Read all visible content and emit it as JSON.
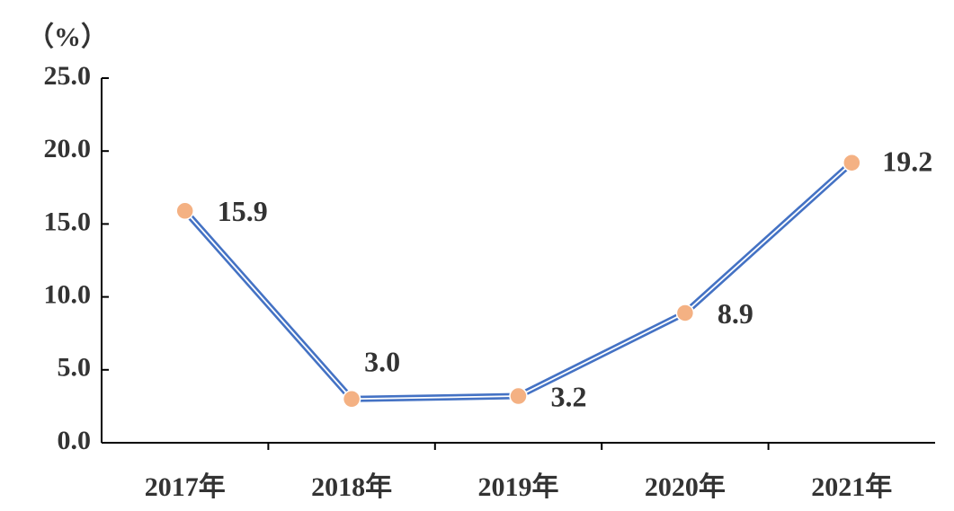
{
  "chart_data": {
    "type": "line",
    "y_label": "（%）",
    "categories": [
      "2017年",
      "2018年",
      "2019年",
      "2020年",
      "2021年"
    ],
    "series": [
      {
        "color": "#4472c4",
        "marker_color": "#f4b183",
        "values": [
          15.9,
          3.0,
          3.2,
          8.9,
          19.2
        ],
        "value_labels": [
          "15.9",
          "3.0",
          "3.2",
          "8.9",
          "19.2"
        ]
      }
    ],
    "ylim": [
      0,
      25
    ],
    "yticks": [
      {
        "value": 0,
        "label": "0.0"
      },
      {
        "value": 5,
        "label": "5.0"
      },
      {
        "value": 10,
        "label": "10.0"
      },
      {
        "value": 15,
        "label": "15.0"
      },
      {
        "value": 20,
        "label": "20.0"
      },
      {
        "value": 25,
        "label": "25.0"
      }
    ],
    "grid": false
  }
}
